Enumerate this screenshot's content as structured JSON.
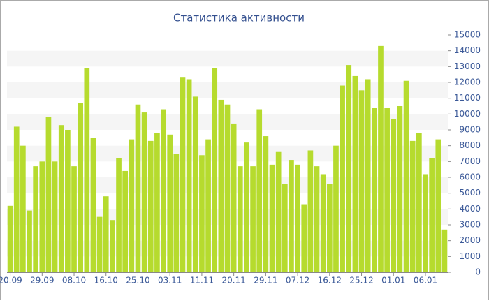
{
  "chart_data": {
    "type": "bar",
    "title": "Статистика активности",
    "categories": [
      "20.09",
      null,
      null,
      null,
      null,
      "29.09",
      null,
      null,
      null,
      null,
      "08.10",
      null,
      null,
      null,
      null,
      "16.10",
      null,
      null,
      null,
      null,
      "25.10",
      null,
      null,
      null,
      null,
      "03.11",
      null,
      null,
      null,
      null,
      "11.11",
      null,
      null,
      null,
      null,
      "20.11",
      null,
      null,
      null,
      null,
      "29.11",
      null,
      null,
      null,
      null,
      "07.12",
      null,
      null,
      null,
      null,
      "16.12",
      null,
      null,
      null,
      null,
      "25.12",
      null,
      null,
      null,
      null,
      "01.01",
      null,
      null,
      null,
      null,
      "06.01",
      null,
      null,
      null
    ],
    "values": [
      4200,
      9200,
      8000,
      3900,
      6700,
      7000,
      9800,
      7000,
      9300,
      9000,
      6700,
      10700,
      12900,
      8500,
      3500,
      4800,
      3300,
      7200,
      6400,
      8400,
      10600,
      10100,
      8300,
      8800,
      10300,
      8700,
      7500,
      12300,
      12200,
      11100,
      7400,
      8400,
      12900,
      10900,
      10600,
      9400,
      6700,
      8200,
      6700,
      10300,
      8600,
      6800,
      7600,
      5600,
      7100,
      6800,
      4300,
      7700,
      6700,
      6200,
      5600,
      8000,
      11800,
      13100,
      12400,
      11500,
      12200,
      10400,
      14300,
      10400,
      9700,
      10500,
      12100,
      8300,
      8800,
      6200,
      7200,
      8400,
      2700
    ],
    "color": "#b6db2e",
    "ylim": [
      0,
      15000
    ],
    "yticks": [
      0,
      1000,
      2000,
      3000,
      4000,
      5000,
      6000,
      7000,
      8000,
      9000,
      10000,
      11000,
      12000,
      13000,
      14000,
      15000
    ],
    "grid": true
  }
}
